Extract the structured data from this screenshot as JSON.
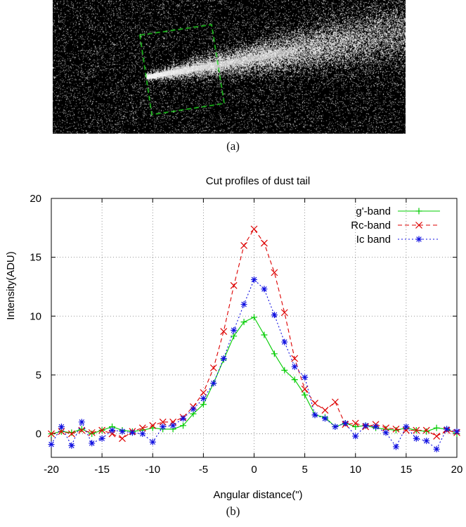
{
  "panel_a": {
    "label": "(a)",
    "image_type": "grayscale-comet-image-with-green-box"
  },
  "panel_b": {
    "label": "(b)"
  },
  "colors": {
    "g_band": "#00cc00",
    "rc_band": "#dd0000",
    "ic_band": "#1010e0",
    "grid": "#7a7a7a",
    "axis": "#000000",
    "box": "#22dd22"
  },
  "chart_data": {
    "type": "line",
    "title": "Cut profiles of dust tail",
    "xlabel": "Angular distance(\")",
    "ylabel": "Intensity(ADU)",
    "xlim": [
      -20,
      20
    ],
    "ylim": [
      -2,
      20
    ],
    "xticks": [
      -20,
      -15,
      -10,
      -5,
      0,
      5,
      10,
      15,
      20
    ],
    "yticks": [
      0,
      5,
      10,
      15,
      20
    ],
    "grid": true,
    "legend_position": "top-right",
    "x": [
      -20,
      -19,
      -18,
      -17,
      -16,
      -15,
      -14,
      -13,
      -12,
      -11,
      -10,
      -9,
      -8,
      -7,
      -6,
      -5,
      -4,
      -3,
      -2,
      -1,
      0,
      1,
      2,
      3,
      4,
      5,
      6,
      7,
      8,
      9,
      10,
      11,
      12,
      13,
      14,
      15,
      16,
      17,
      18,
      19,
      20
    ],
    "series": [
      {
        "name": "g'-band",
        "marker": "plus",
        "line": "solid",
        "values": [
          0.0,
          0.2,
          0.1,
          0.4,
          0.0,
          0.3,
          0.6,
          0.3,
          0.2,
          0.3,
          0.5,
          0.4,
          0.4,
          0.7,
          1.7,
          2.5,
          4.3,
          6.3,
          8.3,
          9.5,
          9.9,
          8.4,
          6.8,
          5.4,
          4.6,
          3.3,
          1.6,
          1.4,
          0.6,
          0.9,
          0.6,
          0.7,
          0.5,
          0.4,
          0.3,
          0.5,
          0.3,
          0.2,
          0.5,
          0.4,
          0.0
        ]
      },
      {
        "name": "Rc-band",
        "marker": "cross",
        "line": "dashed",
        "values": [
          0.0,
          0.2,
          0.0,
          0.3,
          0.1,
          0.3,
          0.0,
          -0.4,
          0.2,
          0.5,
          0.7,
          1.0,
          1.0,
          1.4,
          2.3,
          3.5,
          5.6,
          8.7,
          12.6,
          16.0,
          17.4,
          16.2,
          13.7,
          10.3,
          6.4,
          3.8,
          2.6,
          2.0,
          2.7,
          0.8,
          0.9,
          0.6,
          0.8,
          0.5,
          0.4,
          0.3,
          0.3,
          0.3,
          -0.2,
          0.3,
          0.1
        ]
      },
      {
        "name": "Ic band",
        "marker": "star",
        "line": "dotted",
        "values": [
          -0.9,
          0.6,
          -1.0,
          1.0,
          -0.8,
          -0.4,
          0.3,
          0.2,
          0.1,
          0.0,
          -0.7,
          0.6,
          0.7,
          1.3,
          2.1,
          3.0,
          4.3,
          6.4,
          8.8,
          11.0,
          13.1,
          12.3,
          10.1,
          7.8,
          5.7,
          4.8,
          1.6,
          1.3,
          0.6,
          0.9,
          -0.2,
          0.7,
          0.6,
          0.1,
          -1.1,
          0.6,
          -0.4,
          -0.6,
          -1.3,
          0.4,
          0.2
        ]
      }
    ]
  }
}
